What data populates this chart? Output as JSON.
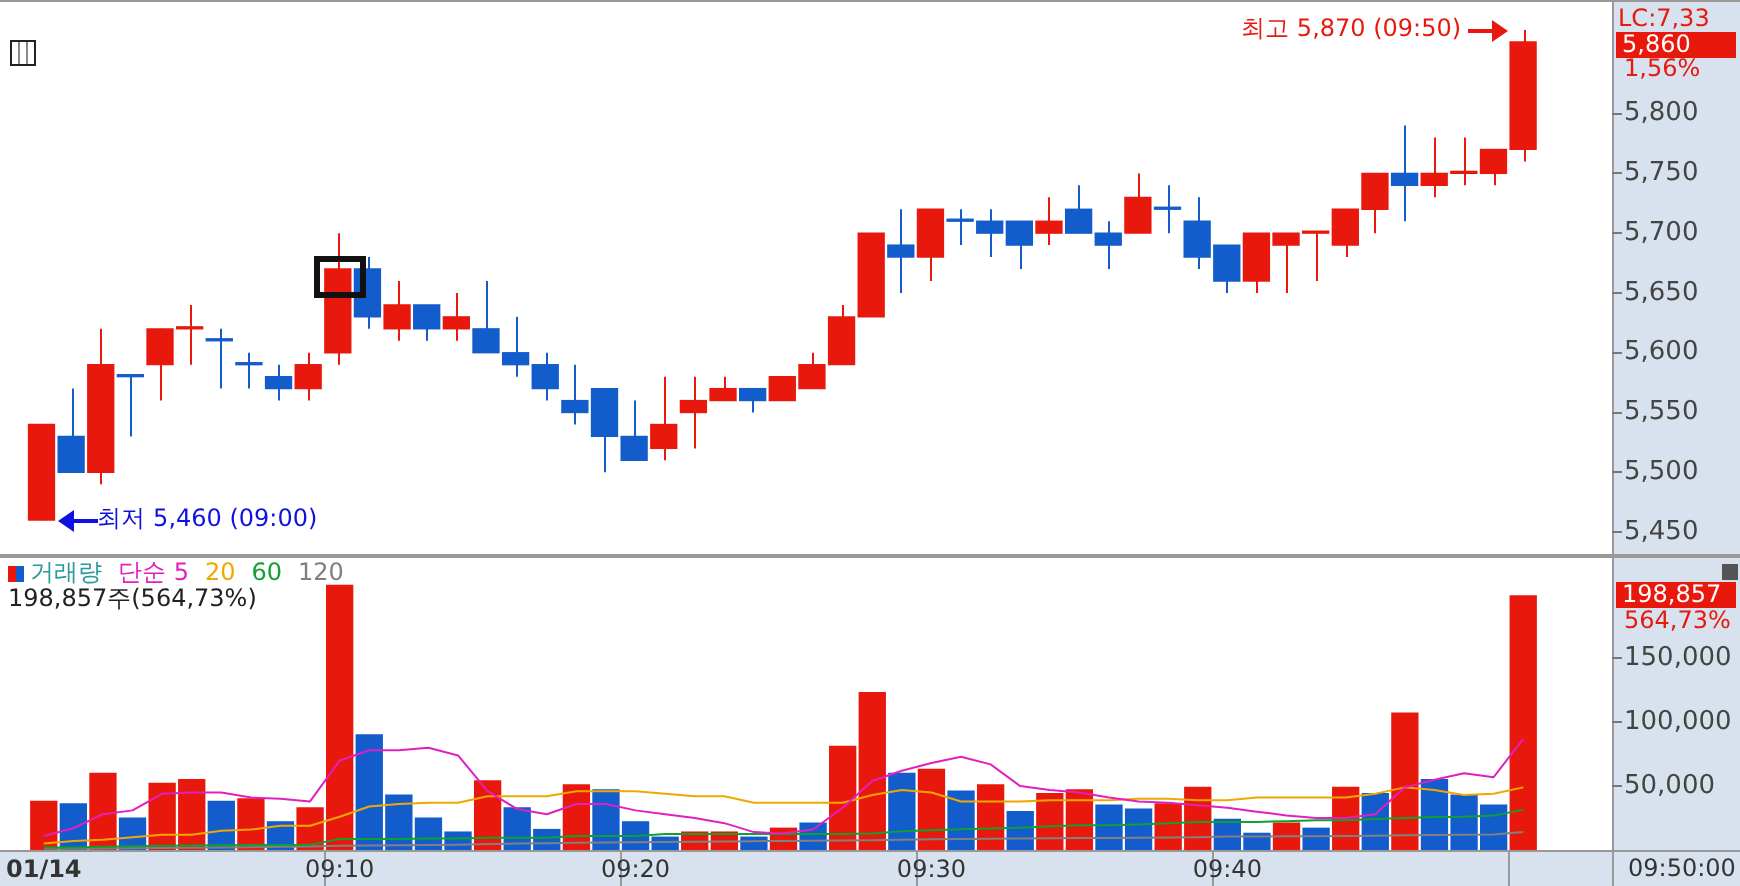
{
  "chart_data": [
    {
      "type": "candlestick",
      "categories": [
        "01/14",
        null,
        null,
        null,
        null,
        null,
        null,
        null,
        null,
        null,
        "09:10",
        null,
        null,
        null,
        null,
        null,
        null,
        null,
        null,
        null,
        "09:20",
        null,
        null,
        null,
        null,
        null,
        null,
        null,
        null,
        null,
        "09:30",
        null,
        null,
        null,
        null,
        null,
        null,
        null,
        null,
        null,
        "09:40",
        null,
        null,
        null,
        null,
        null,
        null,
        null,
        null,
        null,
        null
      ],
      "ohlc": [
        [
          5460,
          5540,
          5460,
          5540
        ],
        [
          5530,
          5570,
          5500,
          5500
        ],
        [
          5500,
          5620,
          5490,
          5590
        ],
        [
          5580,
          5580,
          5530,
          5580
        ],
        [
          5590,
          5620,
          5560,
          5620
        ],
        [
          5620,
          5640,
          5590,
          5620
        ],
        [
          5610,
          5620,
          5570,
          5610
        ],
        [
          5590,
          5600,
          5570,
          5590
        ],
        [
          5580,
          5590,
          5560,
          5570
        ],
        [
          5570,
          5600,
          5560,
          5590
        ],
        [
          5600,
          5700,
          5590,
          5670
        ],
        [
          5670,
          5680,
          5620,
          5630
        ],
        [
          5620,
          5660,
          5610,
          5640
        ],
        [
          5640,
          5640,
          5610,
          5620
        ],
        [
          5620,
          5650,
          5610,
          5630
        ],
        [
          5620,
          5660,
          5600,
          5600
        ],
        [
          5600,
          5630,
          5580,
          5590
        ],
        [
          5590,
          5600,
          5560,
          5570
        ],
        [
          5560,
          5590,
          5540,
          5550
        ],
        [
          5570,
          5570,
          5500,
          5530
        ],
        [
          5530,
          5560,
          5510,
          5510
        ],
        [
          5520,
          5580,
          5510,
          5540
        ],
        [
          5550,
          5580,
          5520,
          5560
        ],
        [
          5560,
          5580,
          5560,
          5570
        ],
        [
          5570,
          5570,
          5550,
          5560
        ],
        [
          5560,
          5580,
          5560,
          5580
        ],
        [
          5570,
          5600,
          5570,
          5590
        ],
        [
          5590,
          5640,
          5590,
          5630
        ],
        [
          5630,
          5700,
          5630,
          5700
        ],
        [
          5690,
          5720,
          5650,
          5680
        ],
        [
          5680,
          5720,
          5660,
          5720
        ],
        [
          5710,
          5720,
          5690,
          5710
        ],
        [
          5710,
          5720,
          5680,
          5700
        ],
        [
          5710,
          5710,
          5670,
          5690
        ],
        [
          5700,
          5730,
          5690,
          5710
        ],
        [
          5720,
          5740,
          5700,
          5700
        ],
        [
          5700,
          5710,
          5670,
          5690
        ],
        [
          5700,
          5750,
          5700,
          5730
        ],
        [
          5720,
          5740,
          5700,
          5720
        ],
        [
          5710,
          5730,
          5670,
          5680
        ],
        [
          5690,
          5690,
          5650,
          5660
        ],
        [
          5660,
          5700,
          5650,
          5700
        ],
        [
          5690,
          5700,
          5650,
          5700
        ],
        [
          5700,
          5700,
          5660,
          5700
        ],
        [
          5690,
          5720,
          5680,
          5720
        ],
        [
          5720,
          5750,
          5700,
          5750
        ],
        [
          5750,
          5790,
          5710,
          5740
        ],
        [
          5740,
          5780,
          5730,
          5750
        ],
        [
          5750,
          5780,
          5740,
          5750
        ],
        [
          5750,
          5770,
          5740,
          5770
        ],
        [
          5770,
          5870,
          5760,
          5860
        ]
      ],
      "colors": [
        "#e8190c",
        "#135ccc",
        "#e8190c",
        "#135ccc",
        "#e8190c",
        "#e8190c",
        "#135ccc",
        "#135ccc",
        "#135ccc",
        "#e8190c",
        "#e8190c",
        "#135ccc",
        "#e8190c",
        "#135ccc",
        "#e8190c",
        "#135ccc",
        "#135ccc",
        "#135ccc",
        "#135ccc",
        "#135ccc",
        "#135ccc",
        "#e8190c",
        "#e8190c",
        "#e8190c",
        "#135ccc",
        "#e8190c",
        "#e8190c",
        "#e8190c",
        "#e8190c",
        "#135ccc",
        "#e8190c",
        "#135ccc",
        "#135ccc",
        "#135ccc",
        "#e8190c",
        "#135ccc",
        "#135ccc",
        "#e8190c",
        "#135ccc",
        "#135ccc",
        "#135ccc",
        "#e8190c",
        "#e8190c",
        "#e8190c",
        "#e8190c",
        "#e8190c",
        "#135ccc",
        "#e8190c",
        "#e8190c",
        "#e8190c",
        "#e8190c"
      ],
      "ylim": [
        5430,
        5895
      ],
      "yticks": [
        {
          "value": 5450,
          "label": "5,450"
        },
        {
          "value": 5500,
          "label": "5,500"
        },
        {
          "value": 5550,
          "label": "5,550"
        },
        {
          "value": 5600,
          "label": "5,600"
        },
        {
          "value": 5650,
          "label": "5,650"
        },
        {
          "value": 5700,
          "label": "5,700"
        },
        {
          "value": 5750,
          "label": "5,750"
        },
        {
          "value": 5800,
          "label": "5,800"
        }
      ],
      "tick_labels": "y",
      "annotations": [
        {
          "text": "최저 5,460 (09:00)",
          "x": "01/14",
          "y": 5460
        },
        "최고 5,870 (09:50)",
        "LC:7,33",
        "5,860",
        "1,56%"
      ]
    },
    {
      "type": "bar",
      "categories": [
        "01/14",
        null,
        null,
        null,
        null,
        null,
        null,
        null,
        null,
        null,
        "09:10",
        null,
        null,
        null,
        null,
        null,
        null,
        null,
        null,
        null,
        "09:20",
        null,
        null,
        null,
        null,
        null,
        null,
        null,
        null,
        null,
        "09:30",
        null,
        null,
        null,
        null,
        null,
        null,
        null,
        null,
        null,
        "09:40",
        null,
        null,
        null,
        null,
        null,
        null,
        null,
        null,
        null,
        null
      ],
      "series": [
        {
          "name": "거래량",
          "values": [
            38000,
            36000,
            60000,
            25000,
            52000,
            55000,
            38000,
            40000,
            22000,
            33000,
            207000,
            90000,
            43000,
            25000,
            14000,
            54000,
            33000,
            16000,
            51000,
            47000,
            22000,
            10000,
            14000,
            14000,
            10000,
            17000,
            21000,
            81000,
            123000,
            60000,
            63000,
            46000,
            51000,
            30000,
            44000,
            47000,
            35000,
            32000,
            36000,
            49000,
            24000,
            13000,
            21000,
            17000,
            49000,
            44000,
            107000,
            55000,
            43000,
            35000,
            198857
          ],
          "colors": [
            "#e8190c",
            "#135ccc",
            "#e8190c",
            "#135ccc",
            "#e8190c",
            "#e8190c",
            "#135ccc",
            "#e8190c",
            "#135ccc",
            "#e8190c",
            "#e8190c",
            "#135ccc",
            "#135ccc",
            "#135ccc",
            "#135ccc",
            "#e8190c",
            "#135ccc",
            "#135ccc",
            "#e8190c",
            "#135ccc",
            "#135ccc",
            "#135ccc",
            "#e8190c",
            "#e8190c",
            "#135ccc",
            "#e8190c",
            "#135ccc",
            "#e8190c",
            "#e8190c",
            "#135ccc",
            "#e8190c",
            "#135ccc",
            "#e8190c",
            "#135ccc",
            "#e8190c",
            "#e8190c",
            "#135ccc",
            "#135ccc",
            "#e8190c",
            "#e8190c",
            "#135ccc",
            "#135ccc",
            "#e8190c",
            "#135ccc",
            "#e8190c",
            "#135ccc",
            "#e8190c",
            "#135ccc",
            "#135ccc",
            "#135ccc",
            "#e8190c"
          ]
        },
        {
          "name": "단순 5",
          "type": "line",
          "color": "#e020c0",
          "values": [
            11000,
            17000,
            28000,
            31000,
            44000,
            45000,
            45000,
            41000,
            40000,
            38000,
            70000,
            78000,
            78000,
            80000,
            74000,
            46000,
            32000,
            28000,
            36000,
            36000,
            31000,
            28000,
            25000,
            21000,
            14000,
            13000,
            16000,
            33000,
            54000,
            62000,
            68000,
            73000,
            67000,
            50000,
            47000,
            45000,
            41000,
            38000,
            37000,
            35000,
            33000,
            30000,
            27000,
            25000,
            25000,
            28000,
            49000,
            55000,
            60000,
            57000,
            87000
          ]
        },
        {
          "name": "20",
          "type": "line",
          "color": "#f0a800",
          "values": [
            5000,
            7000,
            8000,
            10000,
            12000,
            12000,
            15000,
            16000,
            19000,
            19000,
            26000,
            34000,
            36000,
            37000,
            37000,
            42000,
            42000,
            42000,
            46000,
            46000,
            46000,
            44000,
            42000,
            42000,
            37000,
            37000,
            37000,
            37000,
            43000,
            47000,
            45000,
            38000,
            38000,
            38000,
            39000,
            39000,
            39000,
            40000,
            40000,
            39000,
            39000,
            41000,
            41000,
            41000,
            41000,
            44000,
            49000,
            47000,
            43000,
            44000,
            49000
          ]
        },
        {
          "name": "60",
          "type": "line",
          "color": "#10a030",
          "values": [
            2000,
            2000,
            2500,
            3000,
            3300,
            3500,
            3700,
            4000,
            4000,
            4000,
            8700,
            8700,
            8700,
            9000,
            9000,
            9500,
            9500,
            9500,
            11000,
            11000,
            11000,
            12600,
            12600,
            12600,
            12600,
            12600,
            12600,
            12600,
            13000,
            14700,
            15500,
            16300,
            16800,
            17500,
            18500,
            19400,
            19400,
            20000,
            21000,
            22000,
            22000,
            22000,
            22500,
            23200,
            23200,
            24200,
            25000,
            25800,
            26000,
            26900,
            31600
          ]
        },
        {
          "name": "120",
          "type": "line",
          "color": "#808080",
          "values": [
            1000,
            1000,
            1200,
            1400,
            1600,
            1800,
            2000,
            2200,
            2500,
            2800,
            3300,
            3500,
            3700,
            3900,
            4200,
            4700,
            5000,
            5300,
            5600,
            5900,
            6100,
            6300,
            6500,
            6700,
            6900,
            7100,
            7300,
            7400,
            7700,
            8000,
            8400,
            8600,
            8800,
            9000,
            9200,
            9300,
            9400,
            9500,
            9700,
            9900,
            10500,
            10600,
            10700,
            10800,
            10900,
            11100,
            11600,
            11800,
            12000,
            12200,
            14000
          ]
        }
      ],
      "ylim": [
        0,
        230000
      ],
      "yticks": [
        {
          "value": 50000,
          "label": "50,000"
        },
        {
          "value": 100000,
          "label": "100,000"
        },
        {
          "value": 150000,
          "label": "150,000"
        }
      ],
      "legend": "top left",
      "annotations": [
        "198,857주(564,73%)",
        "198,857",
        "564,73%",
        "09:50:00"
      ]
    }
  ]
}
